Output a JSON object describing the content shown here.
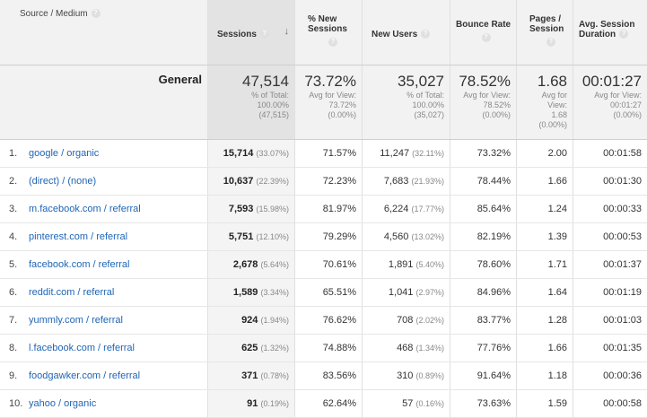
{
  "headers": {
    "source": "Source / Medium",
    "sessions": "Sessions",
    "new_sessions": "% New Sessions",
    "new_users": "New Users",
    "bounce": "Bounce Rate",
    "pages": "Pages / Session",
    "duration": "Avg. Session Duration",
    "help": "?",
    "sort_arrow": "↓"
  },
  "summary": {
    "label": "General",
    "sessions": {
      "value": "47,514",
      "l1": "% of Total:",
      "l2": "100.00%",
      "l3": "(47,515)"
    },
    "new_sessions": {
      "value": "73.72%",
      "l1": "Avg for View:",
      "l2": "73.72%",
      "l3": "(0.00%)"
    },
    "new_users": {
      "value": "35,027",
      "l1": "% of Total:",
      "l2": "100.00%",
      "l3": "(35,027)"
    },
    "bounce": {
      "value": "78.52%",
      "l1": "Avg for View:",
      "l2": "78.52%",
      "l3": "(0.00%)"
    },
    "pages": {
      "value": "1.68",
      "l1": "Avg for",
      "l2": "View:",
      "l3": "1.68",
      "l4": "(0.00%)"
    },
    "duration": {
      "value": "00:01:27",
      "l1": "Avg for View:",
      "l2": "00:01:27",
      "l3": "(0.00%)"
    }
  },
  "rows": [
    {
      "idx": "1.",
      "source": "google / organic",
      "sessions": "15,714",
      "sessions_pct": "(33.07%)",
      "new_sessions": "71.57%",
      "new_users": "11,247",
      "new_users_pct": "(32.11%)",
      "bounce": "73.32%",
      "pages": "2.00",
      "duration": "00:01:58"
    },
    {
      "idx": "2.",
      "source": "(direct) / (none)",
      "sessions": "10,637",
      "sessions_pct": "(22.39%)",
      "new_sessions": "72.23%",
      "new_users": "7,683",
      "new_users_pct": "(21.93%)",
      "bounce": "78.44%",
      "pages": "1.66",
      "duration": "00:01:30"
    },
    {
      "idx": "3.",
      "source": "m.facebook.com / referral",
      "sessions": "7,593",
      "sessions_pct": "(15.98%)",
      "new_sessions": "81.97%",
      "new_users": "6,224",
      "new_users_pct": "(17.77%)",
      "bounce": "85.64%",
      "pages": "1.24",
      "duration": "00:00:33"
    },
    {
      "idx": "4.",
      "source": "pinterest.com / referral",
      "sessions": "5,751",
      "sessions_pct": "(12.10%)",
      "new_sessions": "79.29%",
      "new_users": "4,560",
      "new_users_pct": "(13.02%)",
      "bounce": "82.19%",
      "pages": "1.39",
      "duration": "00:00:53"
    },
    {
      "idx": "5.",
      "source": "facebook.com / referral",
      "sessions": "2,678",
      "sessions_pct": "(5.64%)",
      "new_sessions": "70.61%",
      "new_users": "1,891",
      "new_users_pct": "(5.40%)",
      "bounce": "78.60%",
      "pages": "1.71",
      "duration": "00:01:37"
    },
    {
      "idx": "6.",
      "source": "reddit.com / referral",
      "sessions": "1,589",
      "sessions_pct": "(3.34%)",
      "new_sessions": "65.51%",
      "new_users": "1,041",
      "new_users_pct": "(2.97%)",
      "bounce": "84.96%",
      "pages": "1.64",
      "duration": "00:01:19"
    },
    {
      "idx": "7.",
      "source": "yummly.com / referral",
      "sessions": "924",
      "sessions_pct": "(1.94%)",
      "new_sessions": "76.62%",
      "new_users": "708",
      "new_users_pct": "(2.02%)",
      "bounce": "83.77%",
      "pages": "1.28",
      "duration": "00:01:03"
    },
    {
      "idx": "8.",
      "source": "l.facebook.com / referral",
      "sessions": "625",
      "sessions_pct": "(1.32%)",
      "new_sessions": "74.88%",
      "new_users": "468",
      "new_users_pct": "(1.34%)",
      "bounce": "77.76%",
      "pages": "1.66",
      "duration": "00:01:35"
    },
    {
      "idx": "9.",
      "source": "foodgawker.com / referral",
      "sessions": "371",
      "sessions_pct": "(0.78%)",
      "new_sessions": "83.56%",
      "new_users": "310",
      "new_users_pct": "(0.89%)",
      "bounce": "91.64%",
      "pages": "1.18",
      "duration": "00:00:36"
    },
    {
      "idx": "10.",
      "source": "yahoo / organic",
      "sessions": "91",
      "sessions_pct": "(0.19%)",
      "new_sessions": "62.64%",
      "new_users": "57",
      "new_users_pct": "(0.16%)",
      "bounce": "73.63%",
      "pages": "1.59",
      "duration": "00:00:58"
    }
  ]
}
